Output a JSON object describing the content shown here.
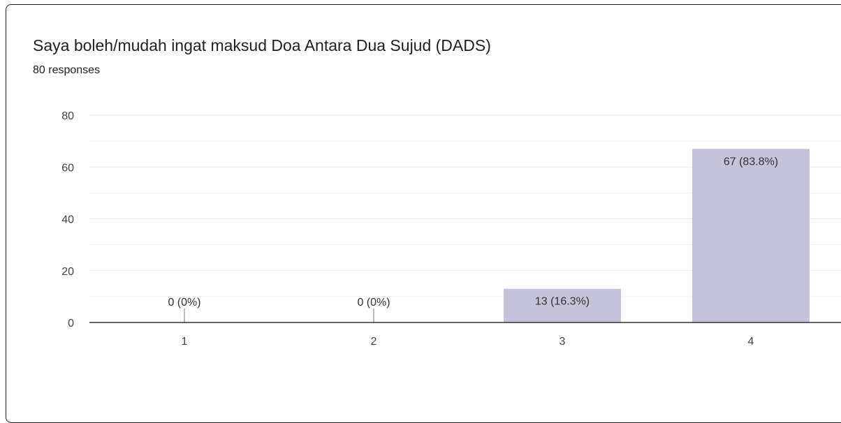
{
  "title": "Saya boleh/mudah ingat maksud Doa Antara Dua Sujud (DADS)",
  "subtitle": "80 responses",
  "colors": {
    "bar": "#c5c3d9",
    "grid": "#e8e8e8",
    "axis": "#333333"
  },
  "chart_data": {
    "type": "bar",
    "title": "Saya boleh/mudah ingat maksud Doa Antara Dua Sujud (DADS)",
    "subtitle": "80 responses",
    "categories": [
      "1",
      "2",
      "3",
      "4"
    ],
    "values": [
      0,
      0,
      13,
      67
    ],
    "data_labels": [
      "0 (0%)",
      "0 (0%)",
      "13 (16.3%)",
      "67 (83.8%)"
    ],
    "ylim": [
      0,
      80
    ],
    "yticks": [
      0,
      20,
      40,
      60,
      80
    ],
    "grid": true,
    "legend": "none"
  }
}
